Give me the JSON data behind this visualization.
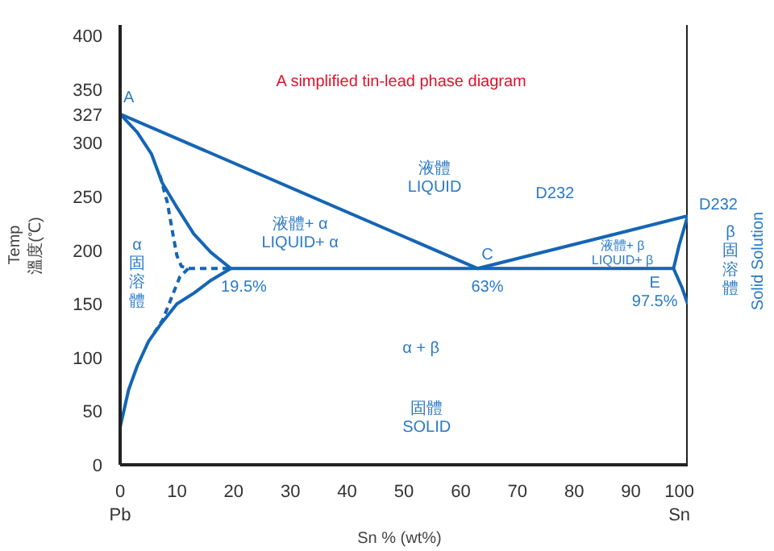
{
  "chart_data": {
    "type": "line",
    "title": "A simplified tin-lead phase diagram",
    "xlabel": "Sn   % (wt%)",
    "ylabel": "Temp\n溫度(℃)",
    "xlim": [
      0,
      100
    ],
    "ylim": [
      0,
      410
    ],
    "xticks": [
      {
        "value": 0,
        "label": "0\nPb"
      },
      10,
      20,
      30,
      40,
      50,
      60,
      70,
      80,
      90,
      {
        "value": 100,
        "label": "100\nSn"
      }
    ],
    "yticks": [
      0,
      50,
      100,
      150,
      200,
      250,
      300,
      327,
      350,
      400
    ],
    "grid": false,
    "marker": "none",
    "line_style": "solid",
    "series": [
      {
        "color": "#1565b5",
        "x": [
          0,
          63,
          100
        ],
        "values": [
          327,
          183,
          232
        ]
      },
      {
        "color": "#1565b5",
        "x": [
          19.5,
          97.5
        ],
        "values": [
          183,
          183
        ]
      },
      {
        "color": "#1565b5",
        "x": [
          0,
          3,
          5.5,
          7.4,
          10,
          13,
          16,
          19.5
        ],
        "values": [
          327,
          310,
          290,
          263,
          240,
          215,
          198,
          183
        ]
      },
      {
        "color": "#1565b5",
        "x": [
          19.5,
          16,
          13,
          10,
          7,
          5,
          3,
          1.5,
          0
        ],
        "values": [
          183,
          172,
          160,
          150,
          130,
          115,
          92,
          70,
          35
        ]
      },
      {
        "color": "#1565b5",
        "x": [
          100,
          98.5,
          97.5
        ],
        "values": [
          232,
          205,
          183
        ]
      },
      {
        "color": "#1565b5",
        "x": [
          97.5,
          99,
          100
        ],
        "values": [
          183,
          165,
          150
        ]
      },
      {
        "color": "#1565b5",
        "line_style": "dashed",
        "x": [
          7,
          8.3,
          9.3,
          10,
          10.8,
          12,
          19.5
        ],
        "values": [
          270,
          245,
          215,
          195,
          185,
          183,
          183
        ]
      },
      {
        "color": "#1565b5",
        "line_style": "dashed",
        "x": [
          12,
          10.5,
          9,
          7.5,
          6
        ],
        "values": [
          183,
          175,
          155,
          135,
          123
        ]
      }
    ],
    "annotations": [
      "A",
      "液體\nLIQUID",
      "D232",
      "D232",
      "液體+ α\nLIQUID+ α",
      "C",
      "63%",
      "19.5%",
      "α固溶體",
      "α + β",
      "固體\nSOLID",
      "液體+ β\nLIQUID+ β",
      "E\n97.5%",
      "β固溶體",
      "Solid Solution"
    ]
  }
}
